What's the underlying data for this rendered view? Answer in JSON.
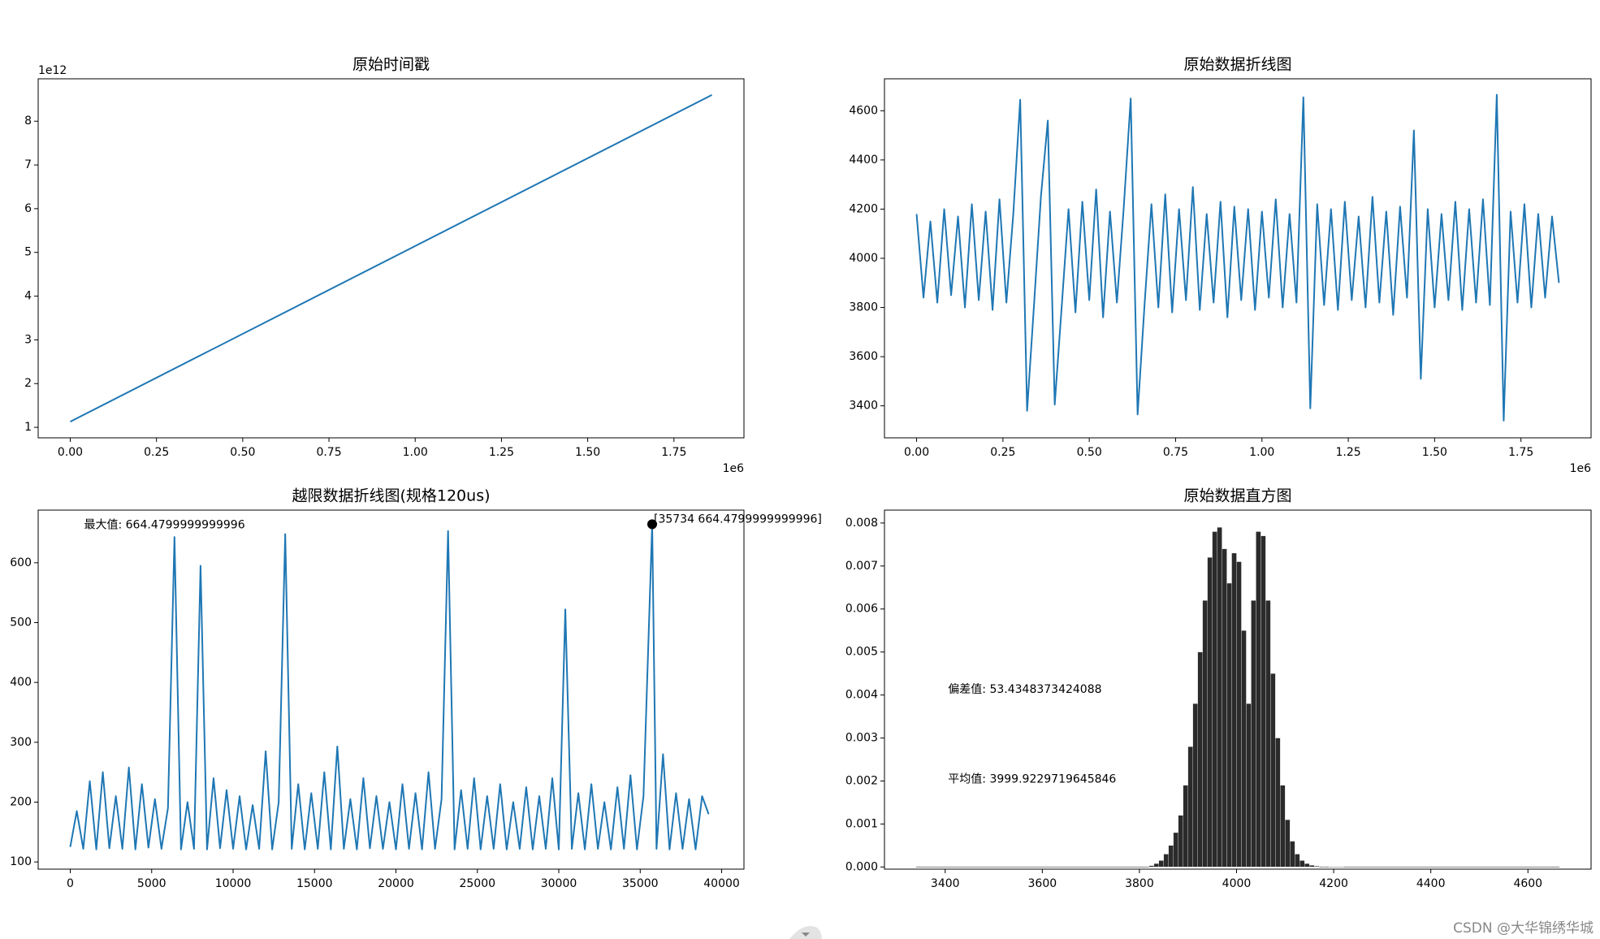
{
  "chart_data": [
    {
      "type": "line",
      "title": "原始时间戳",
      "color": "#1f77b4",
      "x": [
        0,
        1.86
      ],
      "values": [
        1.13,
        8.6
      ],
      "xlim": [
        -0.093,
        1.953
      ],
      "ylim": [
        0.76,
        8.97
      ],
      "xticks": [
        {
          "value": 0,
          "label": "0.00"
        },
        0.25,
        {
          "value": 0.5,
          "label": "0.50"
        },
        0.75,
        {
          "value": 1,
          "label": "1.00"
        },
        1.25,
        {
          "value": 1.5,
          "label": "1.50"
        },
        1.75
      ],
      "yticks": [
        1,
        2,
        3,
        4,
        5,
        6,
        7,
        8
      ],
      "x_offset_label": "1e6",
      "y_offset_label": "1e12"
    },
    {
      "type": "line",
      "title": "原始数据折线图",
      "color": "#1f77b4",
      "x": [
        0,
        0.02,
        0.04,
        0.06,
        0.08,
        0.1,
        0.12,
        0.14,
        0.16,
        0.18,
        0.2,
        0.22,
        0.24,
        0.26,
        0.28,
        0.3,
        0.32,
        0.34,
        0.36,
        0.38,
        0.4,
        0.42,
        0.44,
        0.46,
        0.48,
        0.5,
        0.52,
        0.54,
        0.56,
        0.58,
        0.6,
        0.62,
        0.64,
        0.66,
        0.68,
        0.7,
        0.72,
        0.74,
        0.76,
        0.78,
        0.8,
        0.82,
        0.84,
        0.86,
        0.88,
        0.9,
        0.92,
        0.94,
        0.96,
        0.98,
        1,
        1.02,
        1.04,
        1.06,
        1.08,
        1.1,
        1.12,
        1.14,
        1.16,
        1.18,
        1.2,
        1.22,
        1.24,
        1.26,
        1.28,
        1.3,
        1.32,
        1.34,
        1.36,
        1.38,
        1.4,
        1.42,
        1.44,
        1.46,
        1.48,
        1.5,
        1.52,
        1.54,
        1.56,
        1.58,
        1.6,
        1.62,
        1.64,
        1.66,
        1.68,
        1.7,
        1.72,
        1.74,
        1.76,
        1.78,
        1.8,
        1.82,
        1.84,
        1.86
      ],
      "values": [
        4180,
        3840,
        4150,
        3820,
        4200,
        3850,
        4170,
        3800,
        4220,
        3830,
        4190,
        3790,
        4240,
        3820,
        4180,
        4645,
        3380,
        3810,
        4250,
        4560,
        3405,
        3800,
        4200,
        3780,
        4230,
        3830,
        4280,
        3760,
        4190,
        3820,
        4210,
        4650,
        3365,
        3810,
        4220,
        3800,
        4260,
        3780,
        4200,
        3830,
        4290,
        3790,
        4180,
        3820,
        4230,
        3760,
        4210,
        3830,
        4200,
        3790,
        4190,
        3840,
        4240,
        3800,
        4180,
        3820,
        4655,
        3390,
        4220,
        3810,
        4200,
        3790,
        4230,
        3830,
        4170,
        3800,
        4250,
        3820,
        4190,
        3770,
        4210,
        3840,
        4520,
        3510,
        4200,
        3800,
        4180,
        3830,
        4230,
        3790,
        4200,
        3820,
        4240,
        3810,
        4665,
        3340,
        4190,
        3820,
        4220,
        3800,
        4180,
        3840,
        4170,
        3900
      ],
      "xlim": [
        -0.093,
        1.953
      ],
      "ylim": [
        3270,
        4730
      ],
      "xticks": [
        {
          "value": 0,
          "label": "0.00"
        },
        0.25,
        {
          "value": 0.5,
          "label": "0.50"
        },
        0.75,
        {
          "value": 1,
          "label": "1.00"
        },
        1.25,
        {
          "value": 1.5,
          "label": "1.50"
        },
        1.75
      ],
      "yticks": [
        3400,
        3600,
        3800,
        4000,
        4200,
        4400,
        4600
      ],
      "x_offset_label": "1e6"
    },
    {
      "type": "line",
      "title": "越限数据折线图(规格120us)",
      "color": "#1f77b4",
      "x": [
        0,
        400,
        800,
        1200,
        1600,
        2000,
        2400,
        2800,
        3200,
        3600,
        4000,
        4400,
        4800,
        5200,
        5600,
        6000,
        6400,
        6800,
        7200,
        7600,
        8000,
        8400,
        8800,
        9200,
        9600,
        10000,
        10400,
        10800,
        11200,
        11600,
        12000,
        12400,
        12800,
        13200,
        13600,
        14000,
        14400,
        14800,
        15200,
        15600,
        16000,
        16400,
        16800,
        17200,
        17600,
        18000,
        18400,
        18800,
        19200,
        19600,
        20000,
        20400,
        20800,
        21200,
        21600,
        22000,
        22400,
        22800,
        23200,
        23600,
        24000,
        24400,
        24800,
        25200,
        25600,
        26000,
        26400,
        26800,
        27200,
        27600,
        28000,
        28400,
        28800,
        29200,
        29600,
        30000,
        30400,
        30800,
        31200,
        31600,
        32000,
        32400,
        32800,
        33200,
        33600,
        34000,
        34400,
        34800,
        35200,
        35734,
        36000,
        36400,
        36800,
        37200,
        37600,
        38000,
        38400,
        38800,
        39200
      ],
      "values": [
        125,
        185,
        122,
        235,
        121,
        250,
        123,
        210,
        122,
        258,
        121,
        230,
        124,
        205,
        122,
        190,
        643,
        121,
        200,
        122,
        595,
        121,
        240,
        123,
        220,
        122,
        210,
        121,
        195,
        122,
        285,
        121,
        200,
        648,
        122,
        230,
        121,
        215,
        122,
        250,
        121,
        293,
        122,
        205,
        121,
        240,
        123,
        210,
        122,
        200,
        121,
        230,
        122,
        215,
        121,
        250,
        122,
        205,
        653,
        121,
        220,
        122,
        240,
        121,
        210,
        122,
        230,
        121,
        200,
        122,
        225,
        121,
        210,
        122,
        240,
        121,
        522,
        122,
        215,
        121,
        230,
        122,
        200,
        121,
        225,
        122,
        245,
        121,
        210,
        664.4799999999996,
        122,
        280,
        121,
        215,
        122,
        205,
        121,
        210,
        180
      ],
      "xlim": [
        -1970,
        41370
      ],
      "ylim": [
        88,
        688
      ],
      "xticks": [
        0,
        5000,
        10000,
        15000,
        20000,
        25000,
        30000,
        35000,
        40000
      ],
      "yticks": [
        100,
        200,
        300,
        400,
        500,
        600
      ],
      "annotations": [
        "最大值: 664.4799999999996"
      ],
      "highlight": {
        "x": 35734,
        "y": 664.4799999999996,
        "label": "[35734 664.4799999999996]",
        "color": "#000000"
      }
    },
    {
      "type": "histogram",
      "title": "原始数据直方图",
      "color": "#2b2b2b",
      "bins": [
        3340,
        3820,
        3830,
        3840,
        3850,
        3860,
        3870,
        3880,
        3890,
        3900,
        3910,
        3920,
        3930,
        3940,
        3950,
        3960,
        3970,
        3980,
        3990,
        4000,
        4010,
        4020,
        4030,
        4040,
        4050,
        4060,
        4070,
        4080,
        4090,
        4100,
        4110,
        4120,
        4130,
        4140,
        4150,
        4160,
        4170,
        4180,
        4190,
        4200,
        4210,
        4220,
        4665
      ],
      "counts": [
        1e-05,
        3e-05,
        8e-05,
        0.00015,
        0.0003,
        0.0005,
        0.0008,
        0.0012,
        0.0019,
        0.0028,
        0.0038,
        0.005,
        0.0062,
        0.0072,
        0.0078,
        0.0079,
        0.0074,
        0.0066,
        0.0073,
        0.0071,
        0.0055,
        0.0038,
        0.0062,
        0.0078,
        0.0077,
        0.0062,
        0.0045,
        0.003,
        0.0019,
        0.0011,
        0.0006,
        0.0003,
        0.00015,
        8e-05,
        4e-05,
        2e-05,
        1e-05,
        1e-05,
        5e-06,
        5e-06,
        5e-06,
        1e-05
      ],
      "xlim": [
        3275,
        4730
      ],
      "ylim": [
        -5e-05,
        0.0083
      ],
      "xticks": [
        3400,
        3600,
        3800,
        4000,
        4200,
        4400,
        4600
      ],
      "yticks": [
        {
          "value": 0,
          "label": "0.000"
        },
        0.001,
        0.002,
        0.003,
        0.004,
        0.005,
        0.006,
        0.007,
        0.008
      ],
      "annotations": [
        "偏差值: 53.4348373424088",
        "平均值: 3999.9229719645846"
      ]
    }
  ],
  "watermark": "CSDN @大华锦绣华城"
}
